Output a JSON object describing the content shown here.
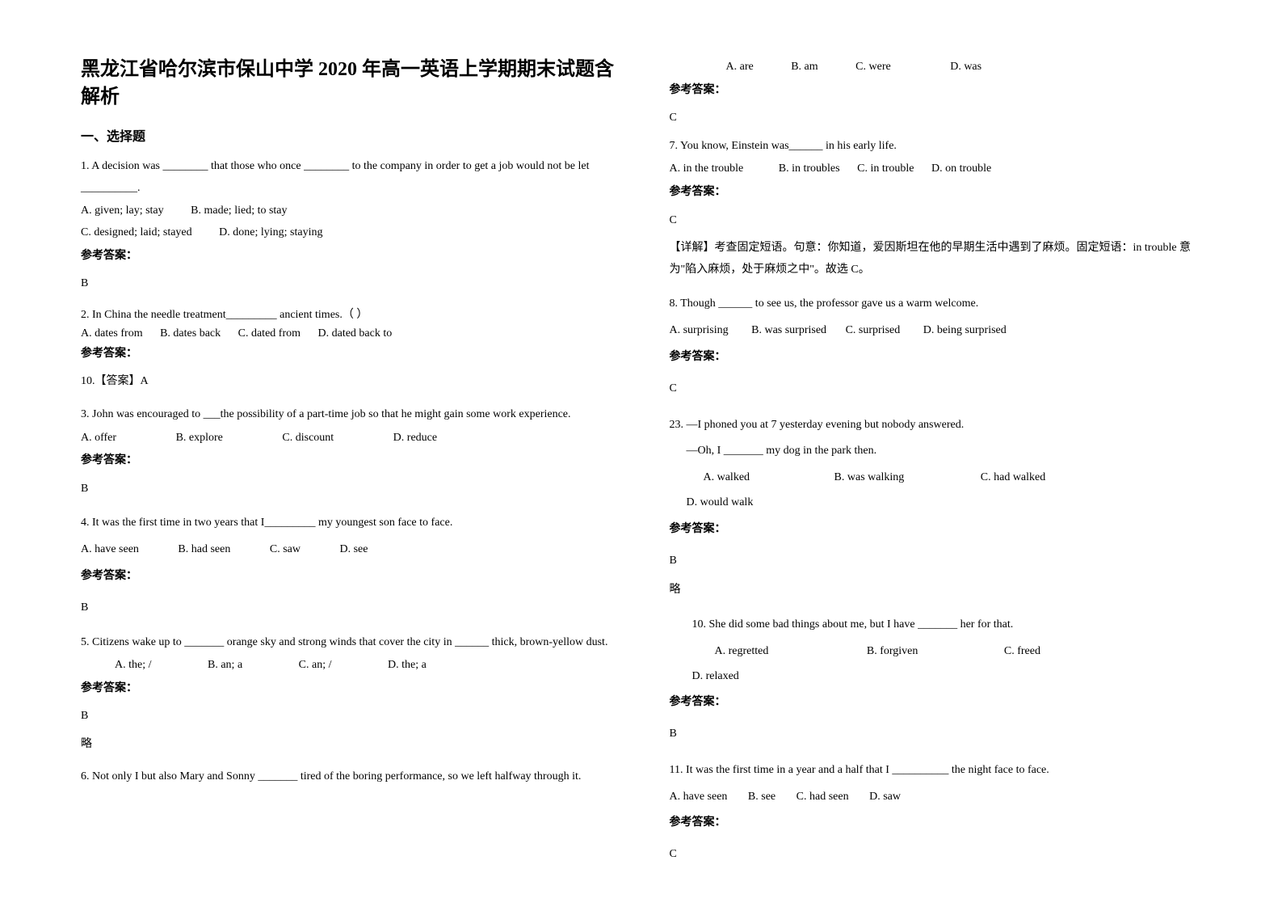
{
  "title": "黑龙江省哈尔滨市保山中学 2020 年高一英语上学期期末试题含解析",
  "section1_header": "一、选择题",
  "answer_label": "参考答案：",
  "q1": {
    "text": "1. A decision was ________ that those who once ________ to the company in order to get a job would not be let __________.",
    "optA": "A. given; lay; stay",
    "optB": "B. made; lied; to stay",
    "optC": "C. designed; laid; stayed",
    "optD": "D. done; lying; staying",
    "answer": "B"
  },
  "q2": {
    "text": "2. In China the needle treatment_________ ancient times.（    ）",
    "optA": "A. dates from",
    "optB": "B. dates back",
    "optC": "C. dated from",
    "optD": "D. dated back to",
    "answer": "10.【答案】A"
  },
  "q3": {
    "text": "3. John was encouraged to ___the possibility of a part-time job so that he might gain some work experience.",
    "optA": "A. offer",
    "optB": "B. explore",
    "optC": "C. discount",
    "optD": "D. reduce",
    "answer": "B"
  },
  "q4": {
    "text": "4. It was the first time in two years that I_________ my youngest son face to face.",
    "optA": "A. have seen",
    "optB": "B. had seen",
    "optC": "C. saw",
    "optD": "D. see",
    "answer": "B"
  },
  "q5": {
    "text": "5. Citizens wake up to _______ orange sky and strong winds that cover the city in ______ thick, brown-yellow dust.",
    "optA": "A. the; /",
    "optB": "B. an; a",
    "optC": "C. an; /",
    "optD": "D. the; a",
    "answer": "B",
    "note": "略"
  },
  "q6": {
    "text": "6. Not only I but also Mary and Sonny _______ tired of the boring performance, so we left halfway through it.",
    "optA": "A. are",
    "optB": "B. am",
    "optC": "C. were",
    "optD": "D. was",
    "answer": "C"
  },
  "q7": {
    "text": "7. You know, Einstein was______ in his early life.",
    "optA": "A. in the trouble",
    "optB": "B. in troubles",
    "optC": "C. in trouble",
    "optD": "D. on trouble",
    "answer": "C",
    "explain": "【详解】考查固定短语。句意：你知道，爱因斯坦在他的早期生活中遇到了麻烦。固定短语：in trouble 意为\"陷入麻烦，处于麻烦之中\"。故选 C。"
  },
  "q8": {
    "text": "8. Though ______ to see us, the professor gave us a warm welcome.",
    "optA": "A. surprising",
    "optB": "B. was surprised",
    "optC": "C. surprised",
    "optD": "D. being surprised",
    "answer": "C"
  },
  "q23": {
    "text1": "23. —I phoned you at 7 yesterday evening but nobody answered.",
    "text2": "—Oh, I _______ my dog in the park then.",
    "optA": "A. walked",
    "optB": "B. was walking",
    "optC": "C. had walked",
    "optD": "D. would walk",
    "answer": "B",
    "note": "略"
  },
  "q10": {
    "text": "10. She did some bad things about me, but I have _______ her for that.",
    "optA": "A. regretted",
    "optB": "B. forgiven",
    "optC": "C. freed",
    "optD": "D. relaxed",
    "answer": "B"
  },
  "q11": {
    "text": "11. It was the first time in a year and a half that I __________ the night face to face.",
    "optA": "A. have seen",
    "optB": "B. see",
    "optC": "C. had seen",
    "optD": "D. saw",
    "answer": "C"
  }
}
